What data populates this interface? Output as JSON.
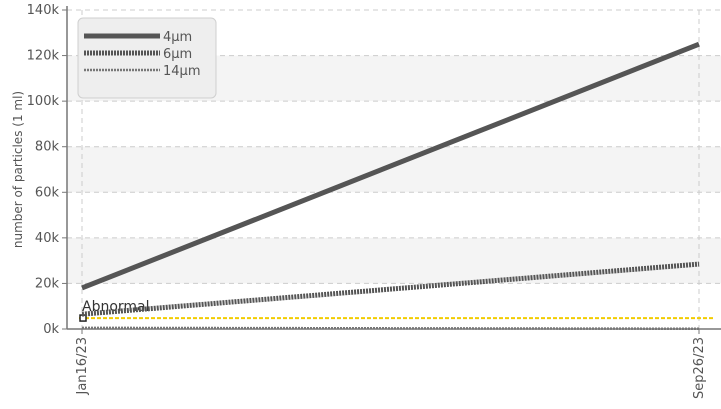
{
  "chart_data": {
    "type": "line",
    "title": "",
    "xlabel": "",
    "ylabel": "number of particles (1 ml)",
    "x": [
      "Jan16/23",
      "Sep26/23"
    ],
    "x_tick_labels": [
      "Jan16/23",
      "Sep26/23"
    ],
    "y_ticks": [
      0,
      20000,
      40000,
      60000,
      80000,
      100000,
      120000,
      140000
    ],
    "y_tick_labels": [
      "0k",
      "20k",
      "40k",
      "60k",
      "80k",
      "100k",
      "120k",
      "140k"
    ],
    "ylim": [
      0,
      140000
    ],
    "grid": true,
    "legend_position": "top-left",
    "series": [
      {
        "name": "4μm",
        "values": [
          18000,
          125000
        ],
        "color": "#555555",
        "style": "solid-thick"
      },
      {
        "name": "6μm",
        "values": [
          6500,
          28500
        ],
        "color": "#555555",
        "style": "dotted-thick"
      },
      {
        "name": "14μm",
        "values": [
          500,
          100
        ],
        "color": "#777777",
        "style": "dotted-thin"
      }
    ],
    "threshold": {
      "label": "Abnormal",
      "value": 4800,
      "color": "#f2cc00"
    }
  }
}
